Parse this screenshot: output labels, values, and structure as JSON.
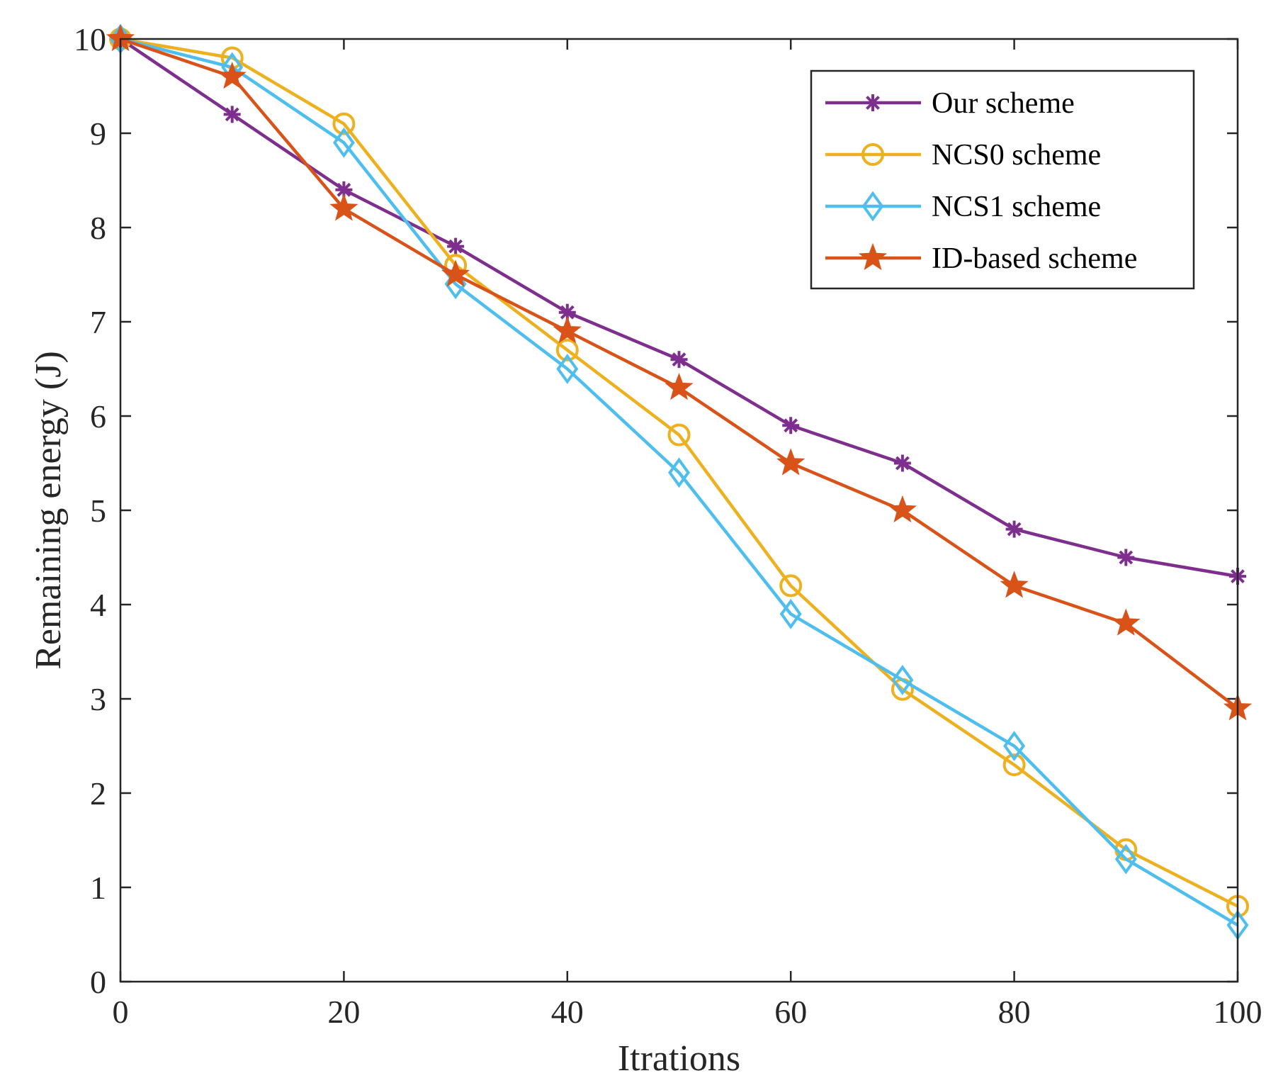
{
  "chart_data": {
    "type": "line",
    "title": "",
    "xlabel": "Itrations",
    "ylabel": "Remaining energy (J)",
    "xlim": [
      0,
      100
    ],
    "ylim": [
      0,
      10
    ],
    "xticks": [
      "0",
      "20",
      "40",
      "60",
      "80",
      "100"
    ],
    "yticks": [
      "0",
      "1",
      "2",
      "3",
      "4",
      "5",
      "6",
      "7",
      "8",
      "9",
      "10"
    ],
    "grid": false,
    "legend_position": "top-right",
    "x": [
      0,
      10,
      20,
      30,
      40,
      50,
      60,
      70,
      80,
      90,
      100
    ],
    "series": [
      {
        "name": "Our scheme",
        "color": "#7E2F8E",
        "marker": "asterisk",
        "values": [
          10,
          9.2,
          8.4,
          7.8,
          7.1,
          6.6,
          5.9,
          5.5,
          4.8,
          4.5,
          4.3
        ]
      },
      {
        "name": "NCS0 scheme",
        "color": "#EDB120",
        "marker": "circle",
        "values": [
          10,
          9.8,
          9.1,
          7.6,
          6.7,
          5.8,
          4.2,
          3.1,
          2.3,
          1.4,
          0.8
        ]
      },
      {
        "name": "NCS1 scheme",
        "color": "#4DBEEE",
        "marker": "diamond",
        "values": [
          10,
          9.7,
          8.9,
          7.4,
          6.5,
          5.4,
          3.9,
          3.2,
          2.5,
          1.3,
          0.6
        ]
      },
      {
        "name": "ID-based scheme",
        "color": "#D95319",
        "marker": "star",
        "values": [
          10,
          9.6,
          8.2,
          7.5,
          6.9,
          6.3,
          5.5,
          5.0,
          4.2,
          3.8,
          2.9
        ]
      }
    ]
  }
}
